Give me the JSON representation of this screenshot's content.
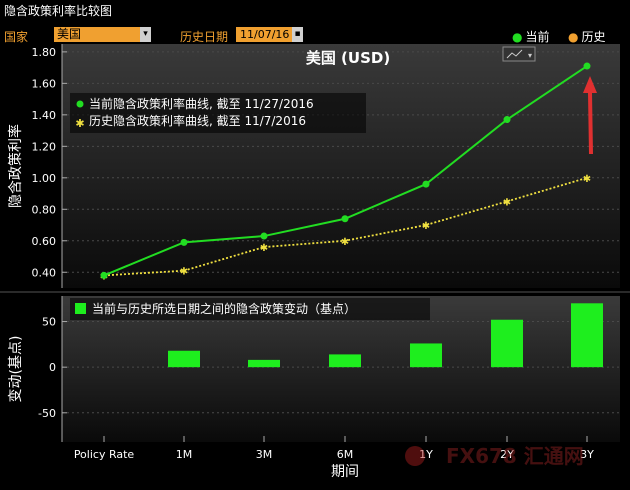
{
  "window_title": "隐含政策利率比较图",
  "toolbar": {
    "country_label": "国家",
    "country_value": "美国",
    "date_label": "历史日期",
    "date_value": "11/07/16",
    "legend_current": "当前",
    "legend_history": "历史"
  },
  "colors": {
    "current": "#22dd22",
    "history": "#f0e040",
    "bar": "#1eee1e",
    "accent": "#f0a030",
    "arrow": "#e03030"
  },
  "chart_data": [
    {
      "type": "line",
      "title": "美国 (USD)",
      "ylabel": "隐含政策利率",
      "ylim": [
        0.3,
        1.85
      ],
      "yticks": [
        "1.80",
        "1.60",
        "1.40",
        "1.20",
        "1.00",
        "0.80",
        "0.60",
        "0.40"
      ],
      "categories": [
        "Policy Rate",
        "1M",
        "3M",
        "6M",
        "1Y",
        "2Y",
        "3Y"
      ],
      "series": [
        {
          "name": "当前隐含政策利率曲线, 截至 11/27/2016",
          "values": [
            0.38,
            0.59,
            0.63,
            0.74,
            0.96,
            1.37,
            1.71
          ]
        },
        {
          "name": "历史隐含政策利率曲线, 截至 11/7/2016",
          "values": [
            0.38,
            0.41,
            0.56,
            0.6,
            0.7,
            0.85,
            1.0
          ]
        }
      ],
      "grid": true,
      "legend": "top-left"
    },
    {
      "type": "bar",
      "ylabel": "变动(基点)",
      "xlabel": "期间",
      "ylim": [
        -82,
        78
      ],
      "yticks": [
        "50",
        "0",
        "-50"
      ],
      "categories": [
        "Policy Rate",
        "1M",
        "3M",
        "6M",
        "1Y",
        "2Y",
        "3Y"
      ],
      "series": [
        {
          "name": "当前与历史所选日期之间的隐含政策变动（基点）",
          "values": [
            0,
            18,
            8,
            14,
            26,
            52,
            70
          ]
        }
      ],
      "legend": "top-left"
    }
  ],
  "watermark": "FX678 汇通网"
}
